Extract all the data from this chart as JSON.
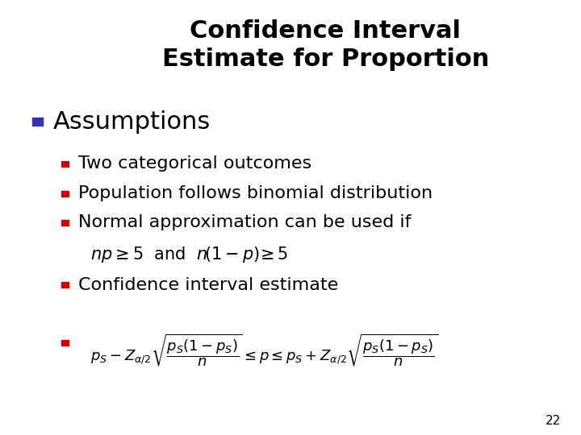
{
  "title_line1": "Confidence Interval",
  "title_line2": "Estimate for Proportion",
  "title_fontsize": 22,
  "title_color": "#000000",
  "background_color": "#ffffff",
  "bullet1_text": "Assumptions",
  "bullet1_color": "#000000",
  "bullet1_fontsize": 22,
  "bullet1_square_color": "#3333AA",
  "sub_bullet_square_color": "#CC0000",
  "sub_bullet_fontsize": 16,
  "sub_bullets": [
    "Two categorical outcomes",
    "Population follows binomial distribution",
    "Normal approximation can be used if"
  ],
  "sub_bullet4": "Confidence interval estimate",
  "page_number": "22",
  "page_number_fontsize": 11,
  "page_number_color": "#000000"
}
